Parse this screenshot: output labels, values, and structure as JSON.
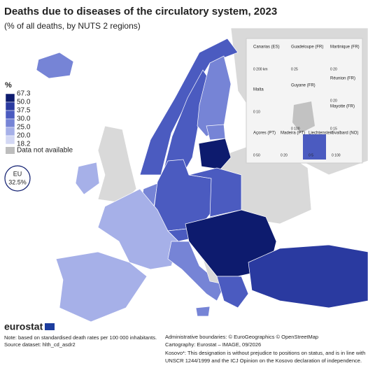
{
  "header": {
    "title": "Deaths due to diseases of the circulatory system, 2023",
    "subtitle": "(% of all deaths, by NUTS 2 regions)"
  },
  "legend": {
    "unit": "%",
    "breaks": [
      "67.3",
      "50.0",
      "37.5",
      "30.0",
      "25.0",
      "20.0",
      "18.2"
    ],
    "no_data": "Data not available"
  },
  "eu_badge": {
    "label": "EU",
    "value": "32.5%"
  },
  "insets": [
    {
      "label": "Canarias (ES)",
      "scale": "0   200 km"
    },
    {
      "label": "Guadeloupe (FR)",
      "scale": "0   25"
    },
    {
      "label": "Martinique (FR)",
      "scale": "0   20"
    },
    {
      "label": "Réunion (FR)",
      "scale": "0   20"
    },
    {
      "label": "Malta",
      "scale": "0   10"
    },
    {
      "label": "Guyane (FR)",
      "scale": "0   100"
    },
    {
      "label": "Mayotte (FR)",
      "scale": "0   15"
    },
    {
      "label": "Açores (PT)",
      "scale": "0   50"
    },
    {
      "label": "Madeira (PT)",
      "scale": "0   20"
    },
    {
      "label": "Liechtenstein",
      "scale": "0   5"
    },
    {
      "label": "Svalbard (NO)",
      "scale": "0   100"
    }
  ],
  "footer": {
    "logo": "eurostat",
    "note": "Note: based on standardised death rates per 100 000 inhabitants.",
    "source": "Source dataset: hlth_cd_asdr2",
    "boundaries": "Administrative boundaries: © EuroGeographics © OpenStreetMap",
    "cartography": "Cartography: Eurostat – IMAGE, 09/2026",
    "kosovo_1": "Kosovo*: This designation is without prejudice to positions on status, and is in line with",
    "kosovo_2": "UNSCR 1244/1999 and the ICJ Opinion on the Kosovo declaration of independence."
  }
}
